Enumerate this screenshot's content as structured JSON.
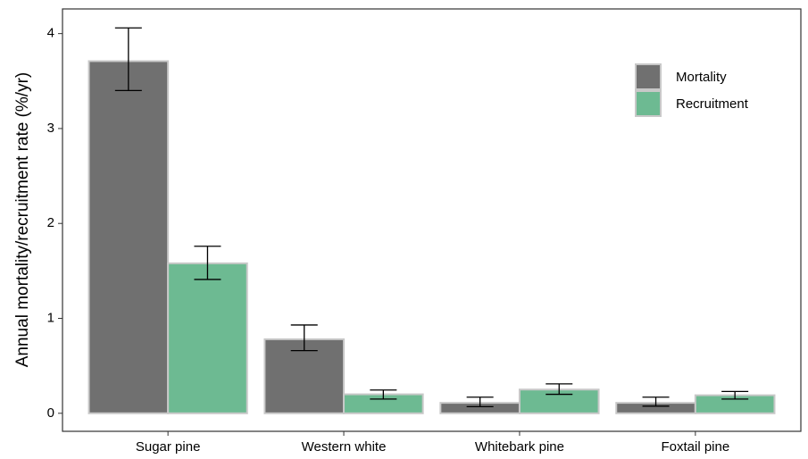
{
  "chart_data": {
    "type": "bar",
    "y_label": "Annual mortality/recruitment rate (%/yr)",
    "categories": [
      "Sugar pine",
      "Western white",
      "Whitebark pine",
      "Foxtail pine"
    ],
    "series": [
      {
        "name": "Mortality",
        "color": "#707070",
        "values": [
          3.71,
          0.78,
          0.11,
          0.11
        ],
        "lower": [
          3.4,
          0.66,
          0.07,
          0.075
        ],
        "upper": [
          4.06,
          0.93,
          0.17,
          0.17
        ]
      },
      {
        "name": "Recruitment",
        "color": "#6dba92",
        "values": [
          1.58,
          0.2,
          0.25,
          0.19
        ],
        "lower": [
          1.41,
          0.15,
          0.2,
          0.15
        ],
        "upper": [
          1.76,
          0.245,
          0.31,
          0.23
        ]
      }
    ],
    "ylim": [
      -0.19,
      4.26
    ],
    "yticks": [
      0,
      1,
      2,
      3,
      4
    ],
    "grid": false,
    "legend": "top-right"
  }
}
